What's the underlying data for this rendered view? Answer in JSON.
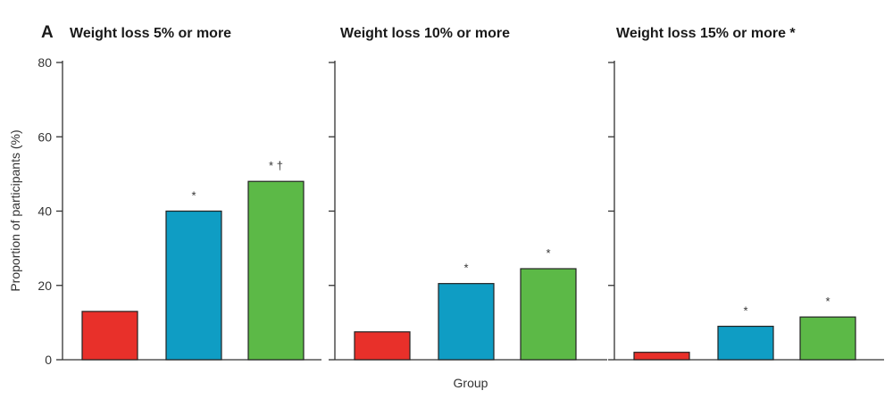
{
  "chart_data": {
    "type": "bar",
    "panel_letter": "A",
    "ylabel": "Proportion of participants (%)",
    "xlabel": "Group",
    "ylim": [
      0,
      80
    ],
    "yticks": [
      0,
      20,
      40,
      60,
      80
    ],
    "grid": false,
    "legend": "none",
    "colors": [
      "#e8302a",
      "#0f9dc4",
      "#5cb947"
    ],
    "panels": [
      {
        "title": "Weight loss 5% or more",
        "values": [
          13,
          40,
          48
        ],
        "annotations": [
          "",
          "*",
          "* †"
        ]
      },
      {
        "title": "Weight loss 10% or more",
        "values": [
          7.5,
          20.5,
          24.5
        ],
        "annotations": [
          "",
          "*",
          "*"
        ]
      },
      {
        "title": "Weight loss 15% or more *",
        "values": [
          2,
          9,
          11.5
        ],
        "annotations": [
          "",
          "*",
          "*"
        ]
      }
    ]
  }
}
